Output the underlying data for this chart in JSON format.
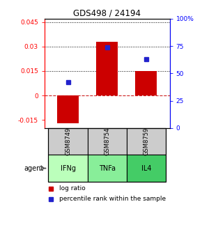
{
  "title": "GDS498 / 24194",
  "samples": [
    "GSM8749",
    "GSM8754",
    "GSM8759"
  ],
  "agents": [
    "IFNg",
    "TNFa",
    "IL4"
  ],
  "log_ratios": [
    -0.017,
    0.033,
    0.015
  ],
  "percentile_ranks": [
    0.42,
    0.74,
    0.63
  ],
  "ylim_left": [
    -0.02,
    0.047
  ],
  "ylim_right": [
    0.0,
    1.0
  ],
  "yticks_left": [
    -0.015,
    0,
    0.015,
    0.03,
    0.045
  ],
  "ytick_labels_left": [
    "-0.015",
    "0",
    "0.015",
    "0.03",
    "0.045"
  ],
  "yticks_right": [
    0.0,
    0.25,
    0.5,
    0.75,
    1.0
  ],
  "ytick_labels_right": [
    "0",
    "25",
    "50",
    "75",
    "100%"
  ],
  "bar_color": "#cc0000",
  "dot_color": "#2222cc",
  "bar_width": 0.55,
  "dotted_lines": [
    0.015,
    0.03,
    0.045
  ],
  "zero_line_color": "#cc2222",
  "gsm_bg_color": "#cccccc",
  "agent_bg_colors": [
    "#bbffbb",
    "#88ee99",
    "#44cc66"
  ],
  "legend_bar_color": "#cc0000",
  "legend_dot_color": "#2222cc"
}
